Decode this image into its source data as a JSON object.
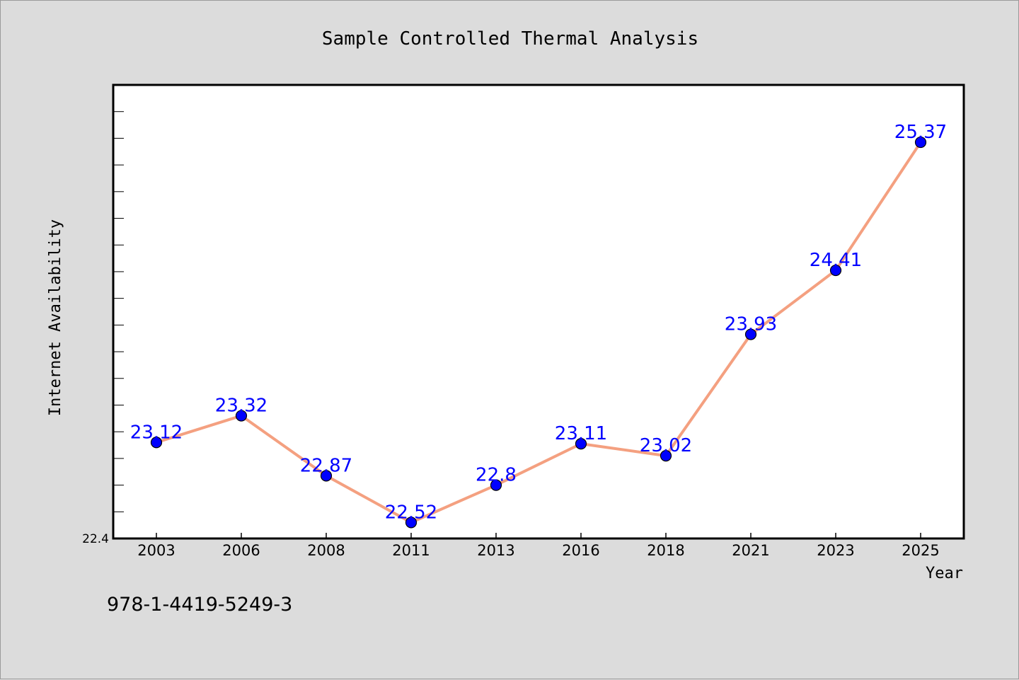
{
  "chart_data": {
    "type": "line",
    "title": "Sample Controlled Thermal Analysis",
    "xlabel": "Year",
    "ylabel": "Internet Availability",
    "categories": [
      "2003",
      "2006",
      "2008",
      "2011",
      "2013",
      "2016",
      "2018",
      "2021",
      "2023",
      "2025"
    ],
    "series": [
      {
        "values": [
          23.12,
          23.32,
          22.87,
          22.52,
          22.8,
          23.11,
          23.02,
          23.93,
          24.41,
          25.37
        ]
      }
    ],
    "data_labels": [
      "23.12",
      "23.32",
      "22.87",
      "22.52",
      "22.8",
      "23.11",
      "23.02",
      "23.93",
      "24.41",
      "25.37"
    ],
    "ylim": [
      22.4,
      25.8
    ],
    "y_min_label": "22.4",
    "grid": false,
    "legend": "none",
    "colors": {
      "line": "#f4a080",
      "marker": "#0000ff",
      "data_label": "#0000ff",
      "plot_background": "#ffffff",
      "page_background": "#dcdcdc"
    }
  },
  "footnote": "978-1-4419-5249-3"
}
